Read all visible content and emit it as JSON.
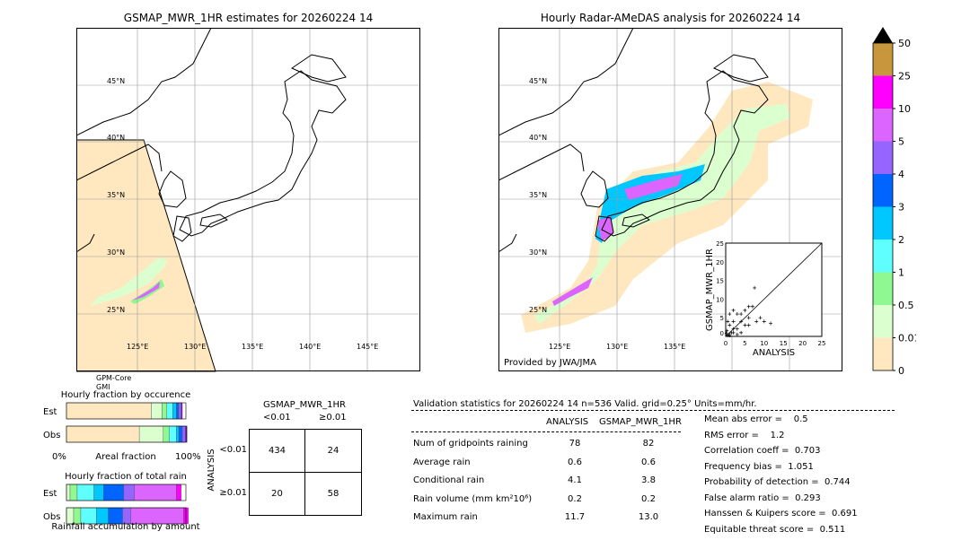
{
  "left_map": {
    "title": "GSMAP_MWR_1HR estimates for 20260224 14",
    "sensor_label": [
      "GPM-Core",
      "GMI"
    ]
  },
  "right_map": {
    "title": "Hourly Radar-AMeDAS analysis for 20260224 14",
    "credit": "Provided by JWA/JMA"
  },
  "lat_labels": [
    "45°N",
    "40°N",
    "35°N",
    "30°N",
    "25°N"
  ],
  "lon_labels": [
    "125°E",
    "130°E",
    "135°E",
    "140°E",
    "145°E"
  ],
  "colorbar": {
    "labels": [
      "50",
      "25",
      "10",
      "5",
      "4",
      "3",
      "2",
      "1",
      "0.5",
      "0.01",
      "0"
    ],
    "colors": [
      "#c8963c",
      "#ff00ff",
      "#dc64ff",
      "#9664ff",
      "#0064ff",
      "#00c8ff",
      "#60ffff",
      "#90f890",
      "#dcffd0",
      "#ffe8c0"
    ],
    "extend_color": "#000000"
  },
  "chart_data": [
    {
      "type": "scatter",
      "xlabel": "ANALYSIS",
      "ylabel": "GSMAP_MWR_1HR",
      "xlim": [
        0,
        25
      ],
      "ylim": [
        0,
        25
      ],
      "ticks": [
        "0",
        "5",
        "10",
        "15",
        "20",
        "25"
      ],
      "points": [
        [
          0.5,
          0.3
        ],
        [
          1,
          0.5
        ],
        [
          1.5,
          1
        ],
        [
          2,
          2
        ],
        [
          0.3,
          1.5
        ],
        [
          1,
          3
        ],
        [
          2,
          4
        ],
        [
          3,
          2
        ],
        [
          4,
          1
        ],
        [
          5,
          3
        ],
        [
          6,
          5
        ],
        [
          7,
          8
        ],
        [
          7.5,
          13
        ],
        [
          8,
          4
        ],
        [
          9,
          5
        ],
        [
          10,
          4
        ],
        [
          11.7,
          3.5
        ],
        [
          3,
          6
        ],
        [
          2,
          7
        ],
        [
          1,
          6
        ],
        [
          0.5,
          4
        ],
        [
          4,
          6
        ],
        [
          5,
          7
        ],
        [
          6,
          3
        ],
        [
          2,
          1
        ],
        [
          3,
          0.5
        ],
        [
          1,
          0.2
        ],
        [
          0.2,
          0.8
        ],
        [
          6,
          8
        ],
        [
          4,
          4
        ]
      ]
    },
    {
      "type": "bar",
      "title": "Hourly fraction by occurence",
      "xlabel": "Areal fraction",
      "x_ticks": [
        "0%",
        "100%"
      ],
      "rows": [
        "Est",
        "Obs"
      ],
      "est": [
        0.71,
        0.09,
        0.04,
        0.05,
        0.03,
        0.02,
        0.02,
        0.01
      ],
      "obs": [
        0.61,
        0.2,
        0.05,
        0.06,
        0.02,
        0.03,
        0.03,
        0.01
      ]
    },
    {
      "type": "bar",
      "title": "Hourly fraction of total rain",
      "xlabel": "Rainfall accumulation by amount",
      "rows": [
        "Est",
        "Obs"
      ],
      "est": [
        0.03,
        0.06,
        0.14,
        0.08,
        0.17,
        0.09,
        0.35,
        0.04
      ],
      "obs": [
        0.06,
        0.06,
        0.13,
        0.1,
        0.12,
        0.07,
        0.44,
        0.04
      ]
    }
  ],
  "contingency": {
    "title": "GSMAP_MWR_1HR",
    "col_labels": [
      "<0.01",
      "≥0.01"
    ],
    "row_axis": "ANALYSIS",
    "row_labels": [
      "<0.01",
      "≥0.01"
    ],
    "cells": [
      [
        "434",
        "24"
      ],
      [
        "20",
        "58"
      ]
    ]
  },
  "stats": {
    "header": "Validation statistics for 20260224 14  n=536 Valid. grid=0.25° Units=mm/hr.",
    "cols": [
      "ANALYSIS",
      "GSMAP_MWR_1HR"
    ],
    "rows": [
      {
        "label": "Num of gridpoints raining",
        "a": "78",
        "g": "82"
      },
      {
        "label": "Average rain",
        "a": "0.6",
        "g": "0.6"
      },
      {
        "label": "Conditional rain",
        "a": "4.1",
        "g": "3.8"
      },
      {
        "label": "Rain volume (mm km²10⁶)",
        "a": "0.2",
        "g": "0.2"
      },
      {
        "label": "Maximum rain",
        "a": "11.7",
        "g": "13.0"
      }
    ],
    "scores": [
      "Mean abs error =    0.5",
      "RMS error =    1.2",
      "Correlation coeff =  0.703",
      "Frequency bias =  1.051",
      "Probability of detection =  0.744",
      "False alarm ratio =  0.293",
      "Hanssen & Kuipers score =  0.691",
      "Equitable threat score =  0.511"
    ]
  }
}
